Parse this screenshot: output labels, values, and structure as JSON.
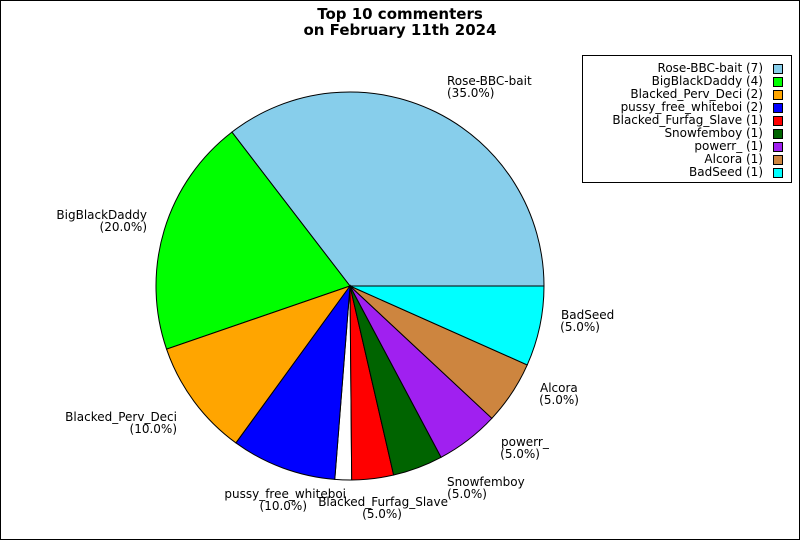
{
  "title_lines": [
    "Top 10 commenters",
    "on February 11th 2024"
  ],
  "chart_data": {
    "type": "pie",
    "title": "Top 10 commenters on February 11th 2024",
    "slices": [
      {
        "label": "Rose-BBC-bait",
        "value": 7,
        "percent": "(35.0%)",
        "legend": "Rose-BBC-bait (7)",
        "color": "#87ceeb"
      },
      {
        "label": "BigBlackDaddy",
        "value": 4,
        "percent": "(20.0%)",
        "legend": "BigBlackDaddy (4)",
        "color": "#00ff00"
      },
      {
        "label": "Blacked_Perv_Deci",
        "value": 2,
        "percent": "(10.0%)",
        "legend": "Blacked_Perv_Deci (2)",
        "color": "#ffa500"
      },
      {
        "label": "pussy_free_whiteboi",
        "value": 2,
        "percent": "(10.0%)",
        "legend": "pussy_free_whiteboi (2)",
        "color": "#0000ff"
      },
      {
        "label": "Blacked_Furfag_Slave",
        "value": 1,
        "percent": "(5.0%)",
        "legend": "Blacked_Furfag_Slave (1)",
        "color": "#ff0000"
      },
      {
        "label": "Snowfemboy",
        "value": 1,
        "percent": "(5.0%)",
        "legend": "Snowfemboy (1)",
        "color": "#006400"
      },
      {
        "label": "powerr_",
        "value": 1,
        "percent": "(5.0%)",
        "legend": "powerr_ (1)",
        "color": "#a020f0"
      },
      {
        "label": "Alcora",
        "value": 1,
        "percent": "(5.0%)",
        "legend": "Alcora (1)",
        "color": "#cd853f"
      },
      {
        "label": "BadSeed",
        "value": 1,
        "percent": "(5.0%)",
        "legend": "BadSeed (1)",
        "color": "#00ffff"
      }
    ],
    "gap_color": "#ffffff",
    "legend_position": "top-right"
  }
}
